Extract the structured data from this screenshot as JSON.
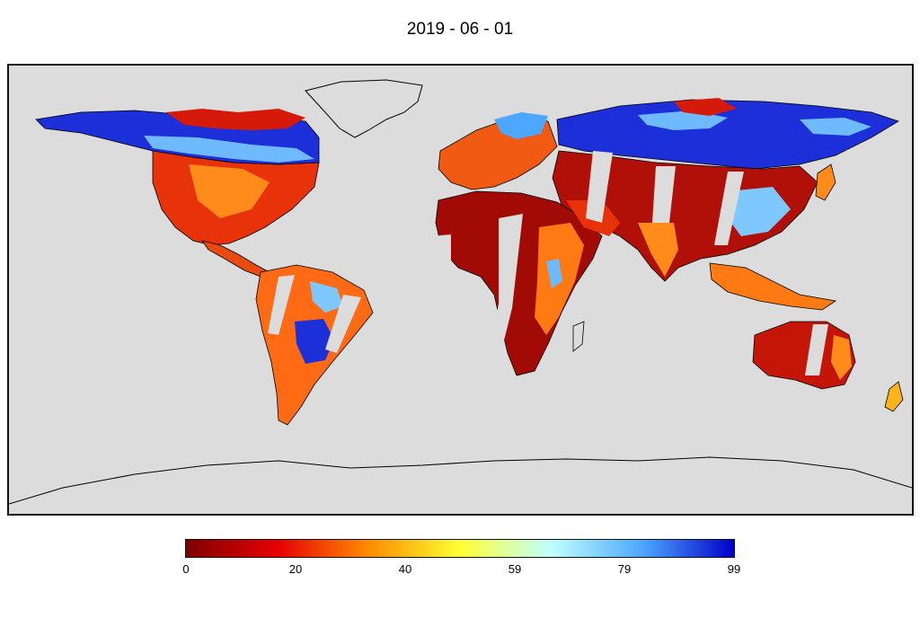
{
  "title": "2019 - 06 - 01",
  "colorbar": {
    "min": 0,
    "max": 99,
    "ticks": [
      "0",
      "20",
      "40",
      "59",
      "79",
      "99"
    ],
    "colors": [
      "#7f0000",
      "#e60000",
      "#ff8c00",
      "#ffff33",
      "#bfffff",
      "#4da6ff",
      "#0000c8"
    ]
  },
  "map": {
    "projection": "equirectangular",
    "background": "#dcdcdc",
    "coastline_color": "#000000"
  }
}
